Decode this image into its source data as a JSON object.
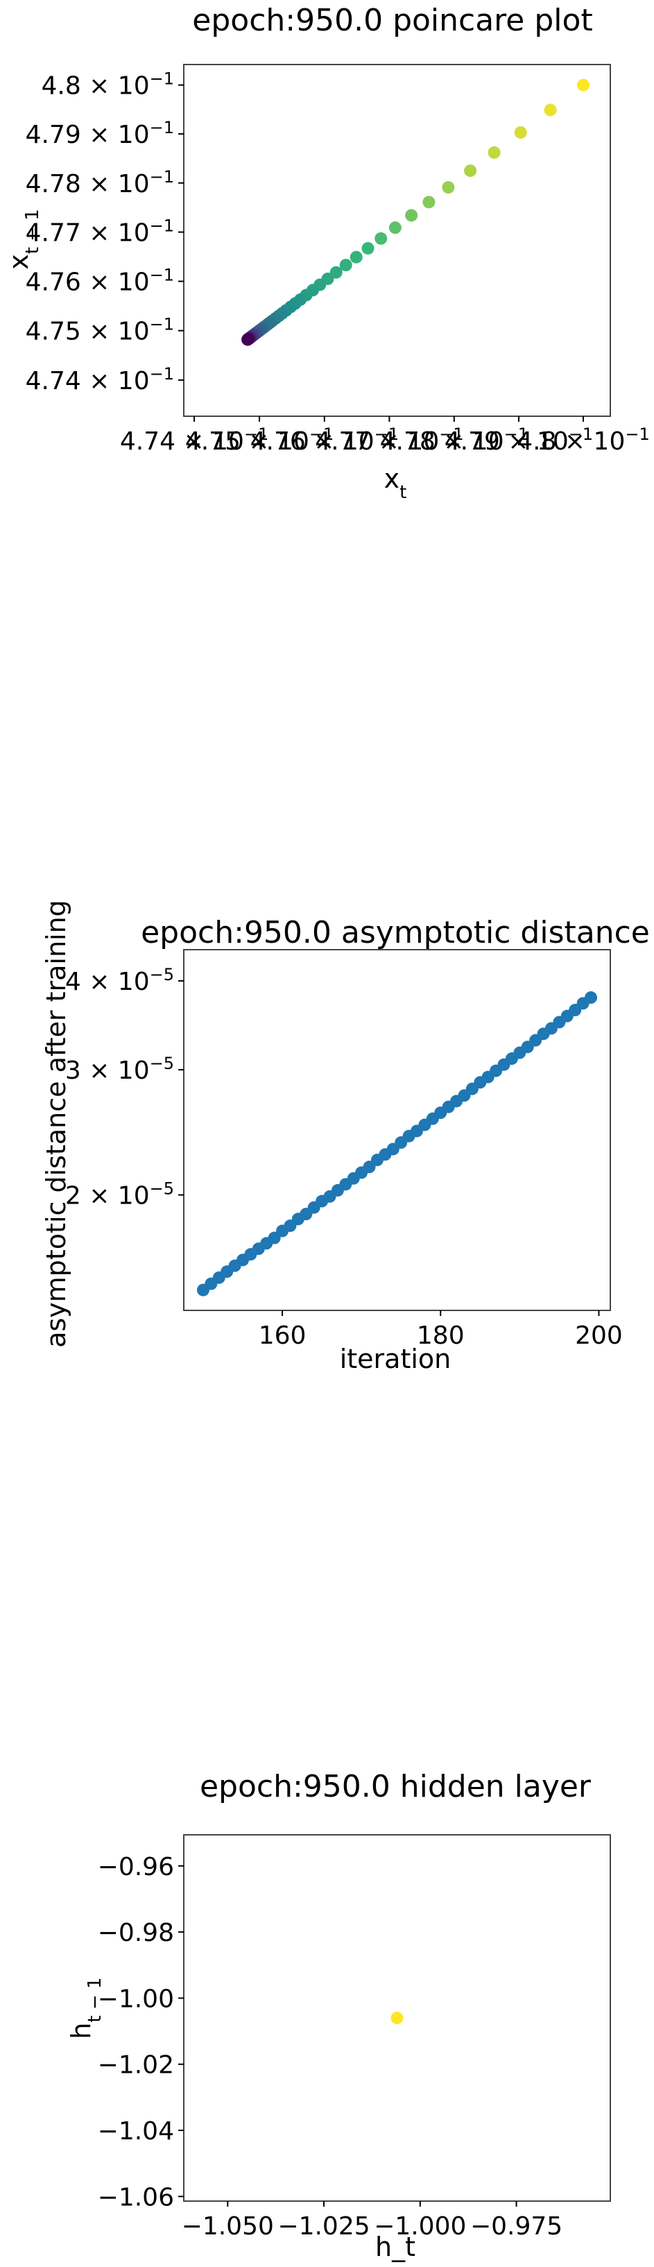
{
  "chart_data": [
    {
      "type": "scatter",
      "title": "epoch:950.0 poincare plot",
      "xlabel": "x_t",
      "ylabel": "x_{t-1}",
      "log_scale": true,
      "x_tick_labels": [
        "4.74 × 10^{-1}",
        "4.75 × 10^{-1}",
        "4.76 × 10^{-1}",
        "4.77 × 10^{-1}",
        "4.78 × 10^{-1}",
        "4.79 × 10^{-1}",
        "4.8 × 10^{-1}"
      ],
      "y_tick_labels": [
        "4.8 × 10^{-1}",
        "4.79 × 10^{-1}",
        "4.78 × 10^{-1}",
        "4.77 × 10^{-1}",
        "4.76 × 10^{-1}",
        "4.75 × 10^{-1}",
        "4.74 × 10^{-1}"
      ],
      "x_ticks": [
        0.474,
        0.475,
        0.476,
        0.477,
        0.478,
        0.479,
        0.48
      ],
      "y_ticks": [
        0.48,
        0.479,
        0.478,
        0.477,
        0.476,
        0.475,
        0.474
      ],
      "xlim": [
        0.47384,
        0.48042
      ],
      "ylim": [
        0.47327,
        0.48042
      ],
      "colormap": [
        "#fde725",
        "#35b779",
        "#21918c",
        "#31688e",
        "#443983",
        "#440154"
      ],
      "x": [
        0.48,
        0.47949,
        0.47903,
        0.47862,
        0.47825,
        0.47791,
        0.47761,
        0.47734,
        0.47709,
        0.47687,
        0.47667,
        0.47649,
        0.47633,
        0.47618,
        0.47605,
        0.47593,
        0.47582,
        0.47572,
        0.47563,
        0.47555,
        0.47548,
        0.47541,
        0.47535,
        0.4753,
        0.47525,
        0.4752,
        0.47516,
        0.47513,
        0.47509,
        0.47506,
        0.47504,
        0.47501,
        0.47499,
        0.47497,
        0.47495,
        0.47494,
        0.47492,
        0.47491,
        0.4749,
        0.47489,
        0.47488,
        0.47487,
        0.47486,
        0.47485,
        0.47485,
        0.47484,
        0.47484,
        0.47483,
        0.47483,
        0.47482,
        0.47482
      ],
      "y": [
        0.48,
        0.47949,
        0.47903,
        0.47862,
        0.47825,
        0.47791,
        0.47761,
        0.47734,
        0.47709,
        0.47687,
        0.47667,
        0.47649,
        0.47633,
        0.47618,
        0.47605,
        0.47593,
        0.47582,
        0.47572,
        0.47563,
        0.47555,
        0.47548,
        0.47541,
        0.47535,
        0.4753,
        0.47525,
        0.4752,
        0.47516,
        0.47513,
        0.47509,
        0.47506,
        0.47504,
        0.47501,
        0.47499,
        0.47497,
        0.47495,
        0.47494,
        0.47492,
        0.47491,
        0.4749,
        0.47489,
        0.47488,
        0.47487,
        0.47486,
        0.47485,
        0.47485,
        0.47484,
        0.47484,
        0.47483,
        0.47483,
        0.47482,
        0.47482
      ]
    },
    {
      "type": "scatter",
      "title": "epoch:950.0 asymptotic distance",
      "xlabel": "iteration",
      "ylabel": "asymptotic distance after training",
      "log_scale_y": true,
      "x_ticks": [
        160,
        180,
        200
      ],
      "x_tick_labels": [
        "160",
        "180",
        "200"
      ],
      "y_ticks": [
        4e-05,
        3e-05,
        2e-05
      ],
      "y_tick_labels": [
        "4 × 10^{-5}",
        "3 × 10^{-5}",
        "2 × 10^{-5}"
      ],
      "xlim": [
        147.55,
        201.45
      ],
      "ylim": [
        1.376e-05,
        4.426e-05
      ],
      "color": "#1f77b4",
      "x": [
        150,
        151,
        152,
        153,
        154,
        155,
        156,
        157,
        158,
        159,
        160,
        161,
        162,
        163,
        164,
        165,
        166,
        167,
        168,
        169,
        170,
        171,
        172,
        173,
        174,
        175,
        176,
        177,
        178,
        179,
        180,
        181,
        182,
        183,
        184,
        185,
        186,
        187,
        188,
        189,
        190,
        191,
        192,
        193,
        194,
        195,
        196,
        197,
        198,
        199
      ],
      "y": [
        1.47e-05,
        1.5e-05,
        1.53e-05,
        1.56e-05,
        1.59e-05,
        1.62e-05,
        1.65e-05,
        1.68e-05,
        1.71e-05,
        1.74e-05,
        1.78e-05,
        1.81e-05,
        1.85e-05,
        1.88e-05,
        1.92e-05,
        1.96e-05,
        1.99e-05,
        2.03e-05,
        2.07e-05,
        2.11e-05,
        2.15e-05,
        2.19e-05,
        2.24e-05,
        2.28e-05,
        2.32e-05,
        2.37e-05,
        2.42e-05,
        2.46e-05,
        2.51e-05,
        2.56e-05,
        2.61e-05,
        2.66e-05,
        2.71e-05,
        2.76e-05,
        2.82e-05,
        2.88e-05,
        2.93e-05,
        2.99e-05,
        3.05e-05,
        3.11e-05,
        3.17e-05,
        3.23e-05,
        3.3e-05,
        3.37e-05,
        3.43e-05,
        3.5e-05,
        3.57e-05,
        3.64e-05,
        3.72e-05,
        3.79e-05
      ]
    },
    {
      "type": "scatter",
      "title": "epoch:950.0 hidden layer",
      "xlabel": "h_t",
      "ylabel": "h_{t-1}",
      "x_ticks": [
        -1.05,
        -1.025,
        -1.0,
        -0.975
      ],
      "x_tick_labels": [
        "−1.050",
        "−1.025",
        "−1.000",
        "−0.975"
      ],
      "y_ticks": [
        -0.96,
        -0.98,
        -1.0,
        -1.02,
        -1.04,
        -1.06
      ],
      "y_tick_labels": [
        "−0.96",
        "−0.98",
        "−1.00",
        "−1.02",
        "−1.04",
        "−1.06"
      ],
      "xlim": [
        -1.0614,
        -0.9506
      ],
      "ylim": [
        -1.0614,
        -0.9506
      ],
      "color": "#fde725",
      "x": [
        -1.006
      ],
      "y": [
        -1.006
      ]
    }
  ]
}
